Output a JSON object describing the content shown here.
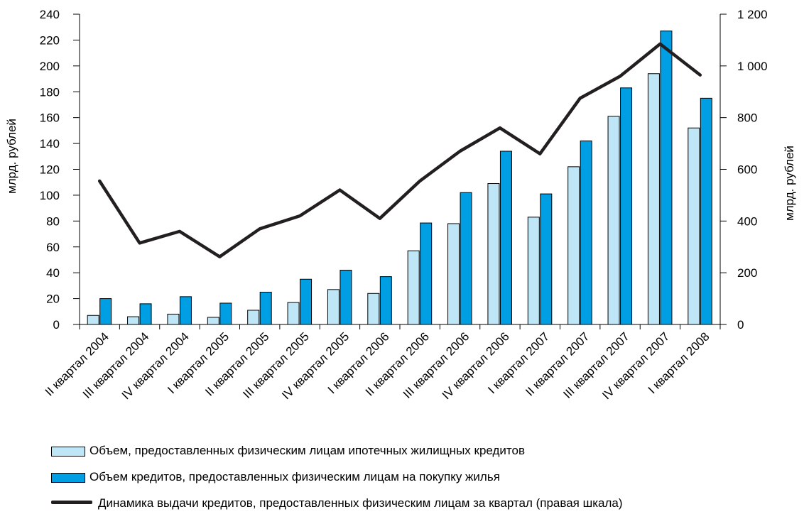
{
  "chart_data": {
    "type": "bar+line",
    "categories": [
      "II квартал 2004",
      "III квартал 2004",
      "IV квартал 2004",
      "I квартал 2005",
      "II квартал 2005",
      "III квартал 2005",
      "IV квартал 2005",
      "I квартал 2006",
      "II квартал 2006",
      "III квартал 2006",
      "IV квартал 2006",
      "I квартал 2007",
      "II квартал 2007",
      "III квартал 2007",
      "IV квартал 2007",
      "I квартал 2008"
    ],
    "series": [
      {
        "name": "Объем, предоставленных физическим лицам ипотечных  жилищных кредитов",
        "kind": "bar",
        "axis": "left",
        "color": "#bfe6f7",
        "values": [
          7,
          6,
          8,
          5.5,
          11,
          17,
          27,
          24,
          57,
          78,
          109,
          83,
          122,
          161,
          194,
          152
        ]
      },
      {
        "name": "Объем кредитов, предоставленных физическим лицам  на покупку жилья",
        "kind": "bar",
        "axis": "left",
        "color": "#009ee2",
        "values": [
          20,
          16,
          21.5,
          16.5,
          25,
          35,
          42,
          37,
          78.5,
          102,
          134,
          101,
          142,
          183,
          227,
          175
        ]
      },
      {
        "name": "Динамика выдачи кредитов,  предоставленных физическим лицам за квартал (правая шкала)",
        "kind": "line",
        "axis": "right",
        "color": "#231f20",
        "values": [
          555,
          315,
          360,
          262,
          370,
          420,
          520,
          410,
          555,
          670,
          760,
          660,
          875,
          960,
          1085,
          965
        ]
      }
    ],
    "left_axis": {
      "label": "млрд. рублей",
      "min": 0,
      "max": 240,
      "ticks": [
        "0",
        "20",
        "40",
        "60",
        "80",
        "100",
        "120",
        "140",
        "160",
        "180",
        "200",
        "220",
        "240"
      ]
    },
    "right_axis": {
      "label": "млрд. рублей",
      "min": 0,
      "max": 1200,
      "ticks": [
        "0",
        "200",
        "400",
        "600",
        "800",
        "1 000",
        "1 200"
      ]
    },
    "grid": false,
    "legend_position": "bottom"
  }
}
